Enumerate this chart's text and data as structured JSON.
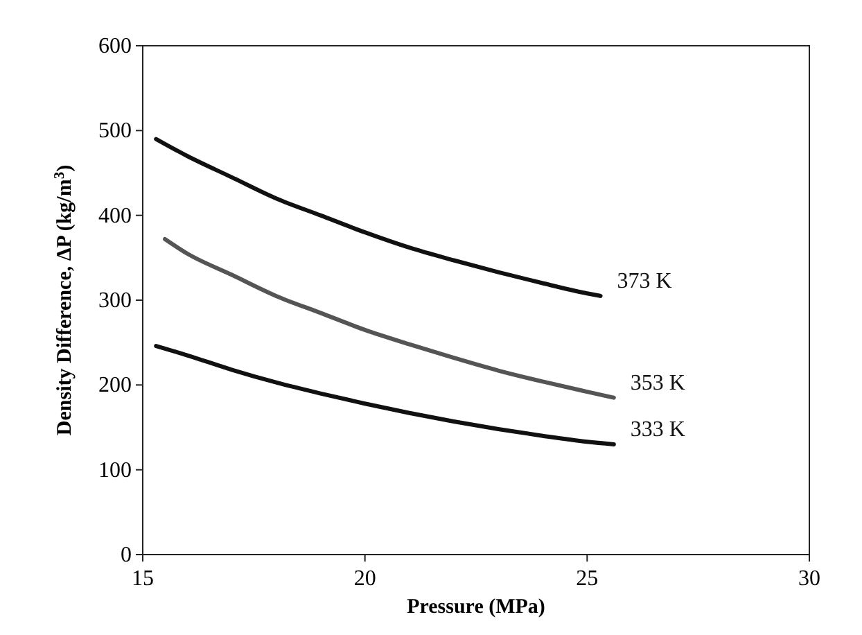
{
  "chart_data": {
    "type": "line",
    "xlabel": "Pressure (MPa)",
    "ylabel": "Density Difference, ΔP (kg/m$^{3}$)",
    "xlim": [
      15,
      30
    ],
    "xticks": [
      15,
      20,
      25,
      30
    ],
    "ylim": [
      0,
      600
    ],
    "yticks": [
      0,
      100,
      200,
      300,
      400,
      500,
      600
    ],
    "grid": false,
    "marker": "none",
    "line_style": "solid",
    "series": [
      {
        "name": "373 K",
        "color": "#111111",
        "x": [
          15.3,
          16,
          17,
          18,
          19,
          20,
          21,
          22,
          23,
          24,
          25,
          25.3
        ],
        "values": [
          490,
          470,
          445,
          420,
          400,
          380,
          362,
          347,
          333,
          320,
          308,
          305
        ]
      },
      {
        "name": "353 K",
        "color": "#555555",
        "x": [
          15.5,
          16,
          17,
          18,
          19,
          20,
          21,
          22,
          23,
          24,
          25,
          25.6
        ],
        "values": [
          372,
          355,
          330,
          305,
          285,
          265,
          248,
          232,
          217,
          204,
          192,
          185
        ]
      },
      {
        "name": "333 K",
        "color": "#111111",
        "x": [
          15.3,
          16,
          17,
          18,
          19,
          20,
          21,
          22,
          23,
          24,
          25,
          25.6
        ],
        "values": [
          246,
          235,
          218,
          203,
          190,
          178,
          167,
          157,
          148,
          140,
          133,
          130
        ]
      }
    ]
  }
}
